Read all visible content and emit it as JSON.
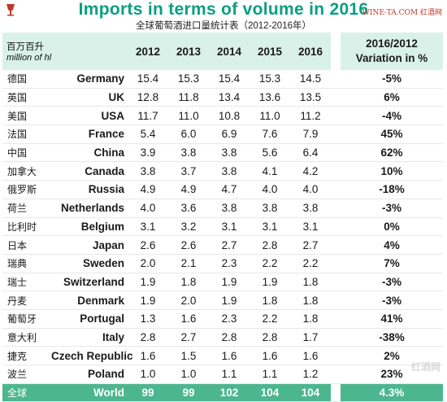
{
  "colors": {
    "title": "#0a9e83",
    "header_bg": "#d9f1e9",
    "total_bg": "#4cb68f"
  },
  "header": {
    "logo_icon": "wine-logo-icon",
    "title": "Imports in terms of volume in 2016",
    "subtitle": "全球葡萄酒进口量统计表（2012-2016年）",
    "watermark": "WINE-TA.COM 红酒网",
    "watermark_bottom": "红酒网"
  },
  "table": {
    "unit_cn": "百万百升",
    "unit_en": "million of hl",
    "years": [
      "2012",
      "2013",
      "2014",
      "2015",
      "2016"
    ],
    "variation_line1": "2016/2012",
    "variation_line2": "Variation in %",
    "rows": [
      {
        "cn": "德国",
        "en": "Germany",
        "v": [
          "15.4",
          "15.3",
          "15.4",
          "15.3",
          "14.5"
        ],
        "var": "-5%"
      },
      {
        "cn": "英国",
        "en": "UK",
        "v": [
          "12.8",
          "11.8",
          "13.4",
          "13.6",
          "13.5"
        ],
        "var": "6%"
      },
      {
        "cn": "美国",
        "en": "USA",
        "v": [
          "11.7",
          "11.0",
          "10.8",
          "11.0",
          "11.2"
        ],
        "var": "-4%"
      },
      {
        "cn": "法国",
        "en": "France",
        "v": [
          "5.4",
          "6.0",
          "6.9",
          "7.6",
          "7.9"
        ],
        "var": "45%"
      },
      {
        "cn": "中国",
        "en": "China",
        "v": [
          "3.9",
          "3.8",
          "3.8",
          "5.6",
          "6.4"
        ],
        "var": "62%"
      },
      {
        "cn": "加拿大",
        "en": "Canada",
        "v": [
          "3.8",
          "3.7",
          "3.8",
          "4.1",
          "4.2"
        ],
        "var": "10%"
      },
      {
        "cn": "俄罗斯",
        "en": "Russia",
        "v": [
          "4.9",
          "4.9",
          "4.7",
          "4.0",
          "4.0"
        ],
        "var": "-18%"
      },
      {
        "cn": "荷兰",
        "en": "Netherlands",
        "v": [
          "4.0",
          "3.6",
          "3.8",
          "3.8",
          "3.8"
        ],
        "var": "-3%"
      },
      {
        "cn": "比利时",
        "en": "Belgium",
        "v": [
          "3.1",
          "3.2",
          "3.1",
          "3.1",
          "3.1"
        ],
        "var": "0%"
      },
      {
        "cn": "日本",
        "en": "Japan",
        "v": [
          "2.6",
          "2.6",
          "2.7",
          "2.8",
          "2.7"
        ],
        "var": "4%"
      },
      {
        "cn": "瑞典",
        "en": "Sweden",
        "v": [
          "2.0",
          "2.1",
          "2.3",
          "2.2",
          "2.2"
        ],
        "var": "7%"
      },
      {
        "cn": "瑞士",
        "en": "Switzerland",
        "v": [
          "1.9",
          "1.8",
          "1.9",
          "1.9",
          "1.8"
        ],
        "var": "-3%"
      },
      {
        "cn": "丹麦",
        "en": "Denmark",
        "v": [
          "1.9",
          "2.0",
          "1.9",
          "1.8",
          "1.8"
        ],
        "var": "-3%"
      },
      {
        "cn": "葡萄牙",
        "en": "Portugal",
        "v": [
          "1.3",
          "1.6",
          "2.3",
          "2.2",
          "1.8"
        ],
        "var": "41%"
      },
      {
        "cn": "意大利",
        "en": "Italy",
        "v": [
          "2.8",
          "2.7",
          "2.8",
          "2.8",
          "1.7"
        ],
        "var": "-38%"
      },
      {
        "cn": "捷克",
        "en": "Czech Republic",
        "v": [
          "1.6",
          "1.5",
          "1.6",
          "1.6",
          "1.6"
        ],
        "var": "2%"
      },
      {
        "cn": "波兰",
        "en": "Poland",
        "v": [
          "1.0",
          "1.0",
          "1.1",
          "1.1",
          "1.2"
        ],
        "var": "23%"
      }
    ],
    "total": {
      "cn": "全球",
      "en": "World",
      "v": [
        "99",
        "99",
        "102",
        "104",
        "104"
      ],
      "var": "4.3%"
    }
  }
}
